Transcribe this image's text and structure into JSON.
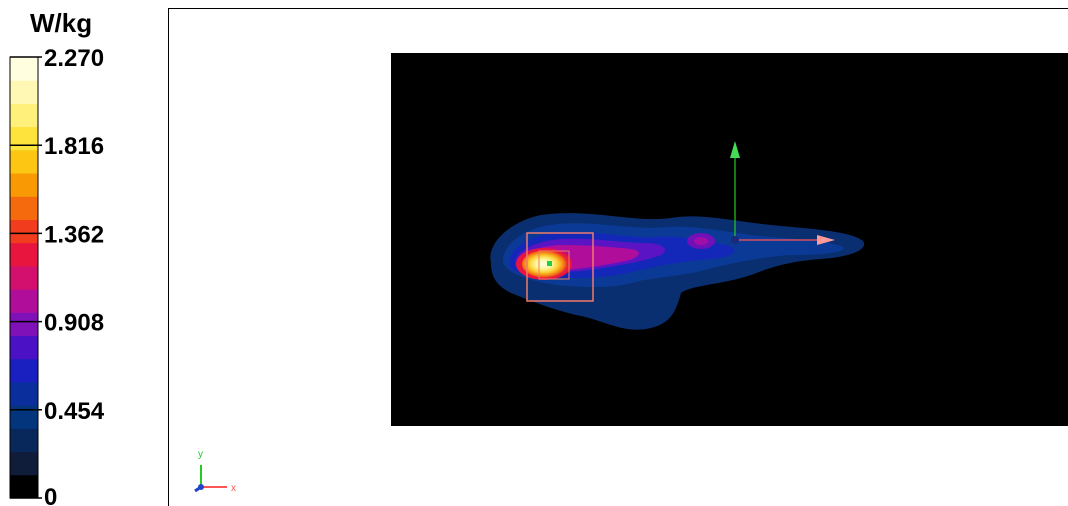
{
  "chart_data": {
    "type": "heatmap",
    "unit": "W/kg",
    "colorbar": {
      "min": 0,
      "max": 2.27,
      "tick_labels": [
        "2.270",
        "1.816",
        "1.362",
        "0.908",
        "0.454",
        "0"
      ],
      "tick_values": [
        2.27,
        1.816,
        1.362,
        0.908,
        0.454,
        0
      ],
      "bands": [
        "#000000",
        "#0f1d3a",
        "#08275a",
        "#02357c",
        "#0a2f9c",
        "#1a1fbf",
        "#4a12c4",
        "#8010b8",
        "#b00e9a",
        "#d4106e",
        "#e8153e",
        "#f13c1e",
        "#f46a0c",
        "#f99a05",
        "#fcc612",
        "#fde33c",
        "#fef07a",
        "#fff8b4",
        "#ffffe0"
      ]
    },
    "peak_value": 2.27,
    "axes_labels": {
      "x": "x",
      "y": "y"
    },
    "axis_colors": {
      "x": "#ff5555",
      "y": "#22cc22",
      "z": "#2244cc"
    }
  }
}
